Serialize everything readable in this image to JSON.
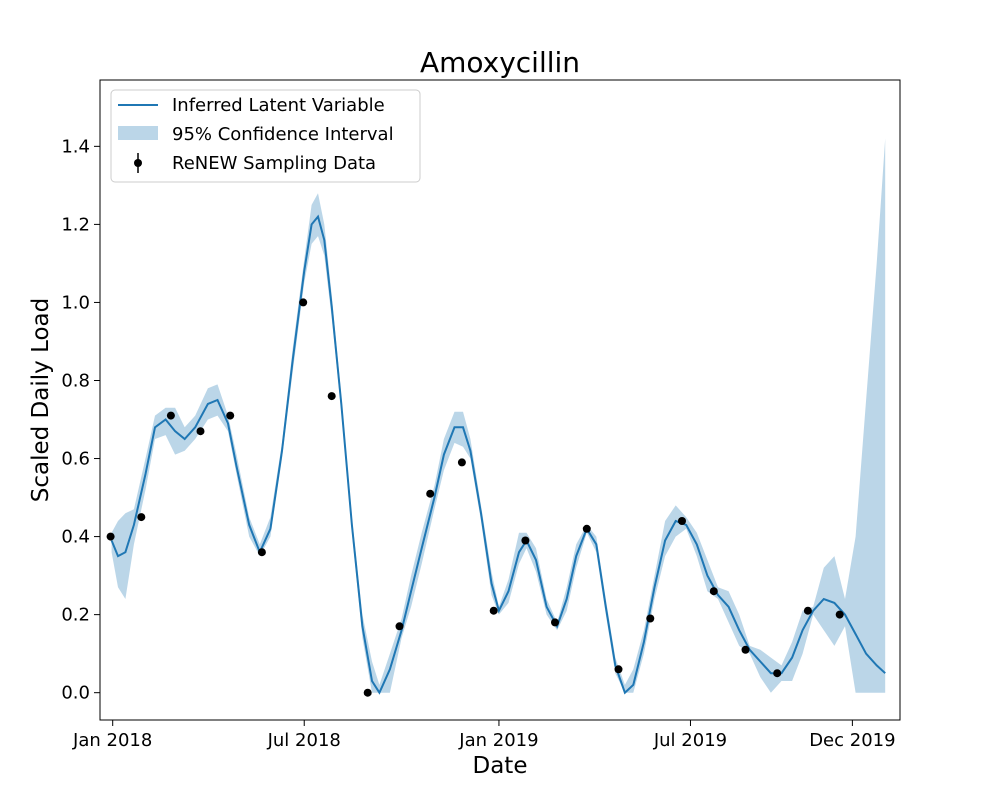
{
  "chart_data": {
    "type": "line",
    "title": "Amoxycillin",
    "xlabel": "Date",
    "ylabel": "Scaled Daily Load",
    "xlim": [
      "2017-12-20",
      "2020-01-15"
    ],
    "ylim": [
      -0.07,
      1.57
    ],
    "grid": false,
    "legend_position": "top-left",
    "x_ticks": [
      {
        "date": "2018-01-01",
        "label": "Jan 2018"
      },
      {
        "date": "2018-07-01",
        "label": "Jul 2018"
      },
      {
        "date": "2019-01-01",
        "label": "Jan 2019"
      },
      {
        "date": "2019-07-01",
        "label": "Jul 2019"
      },
      {
        "date": "2019-12-01",
        "label": "Dec 2019"
      }
    ],
    "y_ticks": [
      {
        "value": 0.0,
        "label": "0.0"
      },
      {
        "value": 0.2,
        "label": "0.2"
      },
      {
        "value": 0.4,
        "label": "0.4"
      },
      {
        "value": 0.6,
        "label": "0.6"
      },
      {
        "value": 0.8,
        "label": "0.8"
      },
      {
        "value": 1.0,
        "label": "1.0"
      },
      {
        "value": 1.2,
        "label": "1.2"
      },
      {
        "value": 1.4,
        "label": "1.4"
      }
    ],
    "series": [
      {
        "name": "Inferred Latent Variable",
        "kind": "line",
        "color": "#1f77b4",
        "points": [
          [
            "2017-12-31",
            0.39
          ],
          [
            "2018-01-06",
            0.35
          ],
          [
            "2018-01-13",
            0.36
          ],
          [
            "2018-01-21",
            0.43
          ],
          [
            "2018-02-01",
            0.56
          ],
          [
            "2018-02-10",
            0.68
          ],
          [
            "2018-02-20",
            0.7
          ],
          [
            "2018-03-01",
            0.67
          ],
          [
            "2018-03-10",
            0.65
          ],
          [
            "2018-03-20",
            0.68
          ],
          [
            "2018-04-01",
            0.74
          ],
          [
            "2018-04-10",
            0.75
          ],
          [
            "2018-04-20",
            0.69
          ],
          [
            "2018-04-28",
            0.58
          ],
          [
            "2018-05-10",
            0.43
          ],
          [
            "2018-05-20",
            0.36
          ],
          [
            "2018-05-30",
            0.42
          ],
          [
            "2018-06-10",
            0.62
          ],
          [
            "2018-06-20",
            0.85
          ],
          [
            "2018-07-01",
            1.08
          ],
          [
            "2018-07-08",
            1.2
          ],
          [
            "2018-07-14",
            1.22
          ],
          [
            "2018-07-20",
            1.16
          ],
          [
            "2018-07-27",
            0.99
          ],
          [
            "2018-08-05",
            0.74
          ],
          [
            "2018-08-15",
            0.43
          ],
          [
            "2018-08-25",
            0.17
          ],
          [
            "2018-09-03",
            0.03
          ],
          [
            "2018-09-10",
            0.0
          ],
          [
            "2018-09-20",
            0.06
          ],
          [
            "2018-10-01",
            0.16
          ],
          [
            "2018-10-10",
            0.26
          ],
          [
            "2018-10-20",
            0.37
          ],
          [
            "2018-11-01",
            0.5
          ],
          [
            "2018-11-10",
            0.61
          ],
          [
            "2018-11-20",
            0.68
          ],
          [
            "2018-11-28",
            0.68
          ],
          [
            "2018-12-05",
            0.62
          ],
          [
            "2018-12-15",
            0.46
          ],
          [
            "2018-12-25",
            0.28
          ],
          [
            "2019-01-01",
            0.21
          ],
          [
            "2019-01-10",
            0.26
          ],
          [
            "2019-01-20",
            0.36
          ],
          [
            "2019-01-27",
            0.39
          ],
          [
            "2019-02-05",
            0.34
          ],
          [
            "2019-02-15",
            0.22
          ],
          [
            "2019-02-25",
            0.17
          ],
          [
            "2019-03-06",
            0.24
          ],
          [
            "2019-03-15",
            0.35
          ],
          [
            "2019-03-25",
            0.42
          ],
          [
            "2019-04-03",
            0.38
          ],
          [
            "2019-04-12",
            0.22
          ],
          [
            "2019-04-21",
            0.07
          ],
          [
            "2019-04-30",
            0.0
          ],
          [
            "2019-05-08",
            0.02
          ],
          [
            "2019-05-18",
            0.13
          ],
          [
            "2019-05-28",
            0.27
          ],
          [
            "2019-06-07",
            0.39
          ],
          [
            "2019-06-17",
            0.44
          ],
          [
            "2019-06-27",
            0.43
          ],
          [
            "2019-07-07",
            0.38
          ],
          [
            "2019-07-17",
            0.3
          ],
          [
            "2019-07-27",
            0.25
          ],
          [
            "2019-08-06",
            0.22
          ],
          [
            "2019-08-16",
            0.16
          ],
          [
            "2019-08-26",
            0.11
          ],
          [
            "2019-09-05",
            0.08
          ],
          [
            "2019-09-15",
            0.05
          ],
          [
            "2019-09-25",
            0.05
          ],
          [
            "2019-10-05",
            0.09
          ],
          [
            "2019-10-15",
            0.16
          ],
          [
            "2019-10-25",
            0.21
          ],
          [
            "2019-11-04",
            0.24
          ],
          [
            "2019-11-14",
            0.23
          ],
          [
            "2019-11-24",
            0.2
          ],
          [
            "2019-12-04",
            0.15
          ],
          [
            "2019-12-14",
            0.1
          ],
          [
            "2019-12-24",
            0.07
          ],
          [
            "2020-01-01",
            0.05
          ]
        ]
      },
      {
        "name": "95% Confidence Interval",
        "kind": "band",
        "color": "#1f77b4",
        "opacity": 0.3,
        "points": [
          [
            "2017-12-31",
            0.36,
            0.41
          ],
          [
            "2018-01-06",
            0.27,
            0.44
          ],
          [
            "2018-01-13",
            0.24,
            0.46
          ],
          [
            "2018-01-21",
            0.38,
            0.47
          ],
          [
            "2018-02-01",
            0.52,
            0.6
          ],
          [
            "2018-02-10",
            0.65,
            0.71
          ],
          [
            "2018-02-20",
            0.66,
            0.73
          ],
          [
            "2018-03-01",
            0.61,
            0.73
          ],
          [
            "2018-03-10",
            0.62,
            0.68
          ],
          [
            "2018-03-20",
            0.65,
            0.71
          ],
          [
            "2018-04-01",
            0.7,
            0.78
          ],
          [
            "2018-04-10",
            0.71,
            0.79
          ],
          [
            "2018-04-20",
            0.67,
            0.71
          ],
          [
            "2018-04-28",
            0.56,
            0.61
          ],
          [
            "2018-05-10",
            0.4,
            0.45
          ],
          [
            "2018-05-20",
            0.35,
            0.38
          ],
          [
            "2018-05-30",
            0.4,
            0.45
          ],
          [
            "2018-06-10",
            0.6,
            0.64
          ],
          [
            "2018-06-20",
            0.82,
            0.88
          ],
          [
            "2018-07-01",
            1.05,
            1.11
          ],
          [
            "2018-07-08",
            1.15,
            1.25
          ],
          [
            "2018-07-14",
            1.17,
            1.28
          ],
          [
            "2018-07-20",
            1.12,
            1.2
          ],
          [
            "2018-07-27",
            0.96,
            1.02
          ],
          [
            "2018-08-05",
            0.72,
            0.76
          ],
          [
            "2018-08-15",
            0.41,
            0.45
          ],
          [
            "2018-08-25",
            0.14,
            0.2
          ],
          [
            "2018-09-03",
            0.0,
            0.08
          ],
          [
            "2018-09-10",
            0.0,
            0.02
          ],
          [
            "2018-09-20",
            0.0,
            0.1
          ],
          [
            "2018-10-01",
            0.14,
            0.19
          ],
          [
            "2018-10-10",
            0.22,
            0.3
          ],
          [
            "2018-10-20",
            0.33,
            0.41
          ],
          [
            "2018-11-01",
            0.47,
            0.53
          ],
          [
            "2018-11-10",
            0.57,
            0.65
          ],
          [
            "2018-11-20",
            0.64,
            0.72
          ],
          [
            "2018-11-28",
            0.63,
            0.72
          ],
          [
            "2018-12-05",
            0.6,
            0.65
          ],
          [
            "2018-12-15",
            0.44,
            0.48
          ],
          [
            "2018-12-25",
            0.25,
            0.31
          ],
          [
            "2019-01-01",
            0.2,
            0.22
          ],
          [
            "2019-01-10",
            0.23,
            0.29
          ],
          [
            "2019-01-20",
            0.33,
            0.41
          ],
          [
            "2019-01-27",
            0.37,
            0.41
          ],
          [
            "2019-02-05",
            0.31,
            0.37
          ],
          [
            "2019-02-15",
            0.2,
            0.24
          ],
          [
            "2019-02-25",
            0.16,
            0.18
          ],
          [
            "2019-03-06",
            0.21,
            0.27
          ],
          [
            "2019-03-15",
            0.32,
            0.38
          ],
          [
            "2019-03-25",
            0.41,
            0.43
          ],
          [
            "2019-04-03",
            0.36,
            0.4
          ],
          [
            "2019-04-12",
            0.2,
            0.24
          ],
          [
            "2019-04-21",
            0.05,
            0.09
          ],
          [
            "2019-04-30",
            0.0,
            0.02
          ],
          [
            "2019-05-08",
            0.0,
            0.06
          ],
          [
            "2019-05-18",
            0.1,
            0.16
          ],
          [
            "2019-05-28",
            0.24,
            0.3
          ],
          [
            "2019-06-07",
            0.35,
            0.44
          ],
          [
            "2019-06-17",
            0.4,
            0.48
          ],
          [
            "2019-06-27",
            0.42,
            0.45
          ],
          [
            "2019-07-07",
            0.35,
            0.41
          ],
          [
            "2019-07-17",
            0.26,
            0.34
          ],
          [
            "2019-07-27",
            0.24,
            0.27
          ],
          [
            "2019-08-06",
            0.18,
            0.26
          ],
          [
            "2019-08-16",
            0.12,
            0.2
          ],
          [
            "2019-08-26",
            0.1,
            0.12
          ],
          [
            "2019-09-05",
            0.04,
            0.11
          ],
          [
            "2019-09-15",
            0.0,
            0.09
          ],
          [
            "2019-09-25",
            0.03,
            0.07
          ],
          [
            "2019-10-05",
            0.03,
            0.13
          ],
          [
            "2019-10-15",
            0.1,
            0.21
          ],
          [
            "2019-10-25",
            0.2,
            0.22
          ],
          [
            "2019-11-04",
            0.16,
            0.32
          ],
          [
            "2019-11-14",
            0.12,
            0.35
          ],
          [
            "2019-11-24",
            0.17,
            0.24
          ],
          [
            "2019-12-04",
            0.0,
            0.4
          ],
          [
            "2019-12-14",
            0.0,
            0.75
          ],
          [
            "2019-12-24",
            0.0,
            1.1
          ],
          [
            "2020-01-01",
            0.0,
            1.42
          ]
        ]
      },
      {
        "name": "ReNEW Sampling Data",
        "kind": "points",
        "color": "#000000",
        "points": [
          [
            "2017-12-30",
            0.4
          ],
          [
            "2018-01-28",
            0.45
          ],
          [
            "2018-02-25",
            0.71
          ],
          [
            "2018-03-25",
            0.67
          ],
          [
            "2018-04-22",
            0.71
          ],
          [
            "2018-05-22",
            0.36
          ],
          [
            "2018-06-30",
            1.0
          ],
          [
            "2018-07-27",
            0.76
          ],
          [
            "2018-08-30",
            0.0
          ],
          [
            "2018-09-29",
            0.17
          ],
          [
            "2018-10-28",
            0.51
          ],
          [
            "2018-11-27",
            0.59
          ],
          [
            "2018-12-27",
            0.21
          ],
          [
            "2019-01-26",
            0.39
          ],
          [
            "2019-02-23",
            0.18
          ],
          [
            "2019-03-25",
            0.42
          ],
          [
            "2019-04-24",
            0.06
          ],
          [
            "2019-05-24",
            0.19
          ],
          [
            "2019-06-23",
            0.44
          ],
          [
            "2019-07-23",
            0.26
          ],
          [
            "2019-08-22",
            0.11
          ],
          [
            "2019-09-21",
            0.05
          ],
          [
            "2019-10-20",
            0.21
          ],
          [
            "2019-11-19",
            0.2
          ]
        ]
      }
    ],
    "legend": [
      {
        "label": "Inferred Latent Variable",
        "kind": "line"
      },
      {
        "label": "95% Confidence Interval",
        "kind": "band"
      },
      {
        "label": "ReNEW Sampling Data",
        "kind": "errorbar"
      }
    ]
  }
}
